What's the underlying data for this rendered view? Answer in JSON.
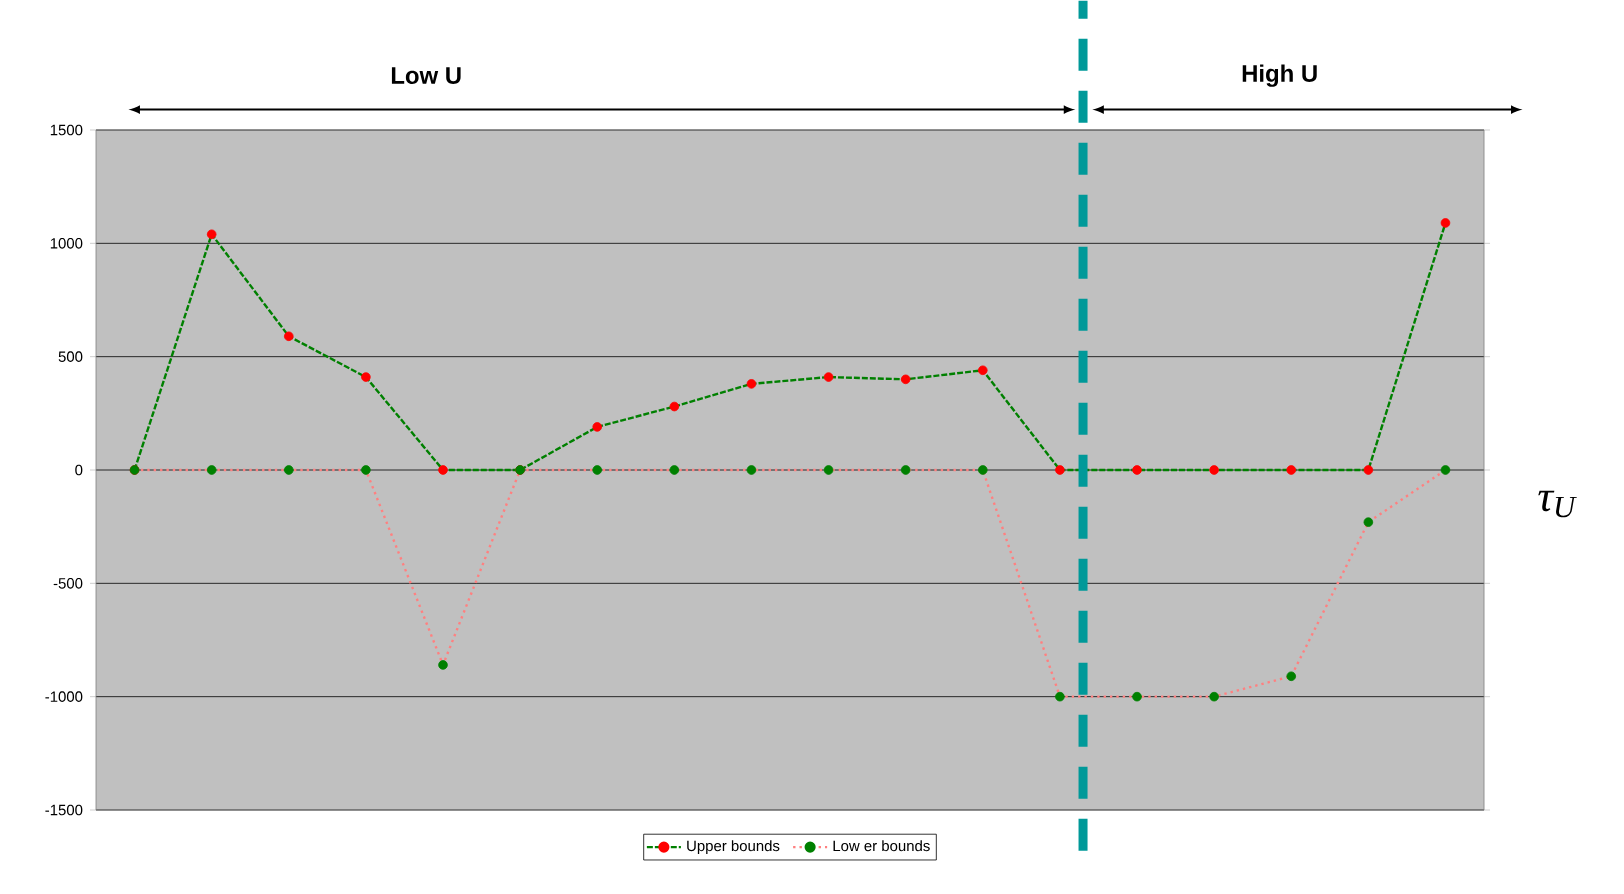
{
  "chart_data": {
    "type": "line",
    "categories": [
      null,
      null,
      null,
      null,
      null,
      null,
      null,
      null,
      null,
      null,
      null,
      null,
      null,
      null,
      null,
      null,
      null,
      null
    ],
    "series": [
      {
        "name": "Upper bounds",
        "color": "#008000",
        "line_style": "dashed",
        "values": [
          0,
          1040,
          590,
          410,
          0,
          0,
          190,
          280,
          380,
          410,
          400,
          440,
          0,
          0,
          0,
          0,
          0,
          1090
        ],
        "colors": [
          "#ff0000",
          "#ff0000",
          "#ff0000",
          "#ff0000",
          "#ff0000",
          "#ff0000",
          "#ff0000",
          "#ff0000",
          "#ff0000",
          "#ff0000",
          "#ff0000",
          "#ff0000",
          "#ff0000",
          "#ff0000",
          "#ff0000",
          "#ff0000",
          "#ff0000",
          "#ff0000"
        ]
      },
      {
        "name": "Low er bounds",
        "color": "#ff8080",
        "line_style": "dotted",
        "values": [
          0,
          0,
          0,
          0,
          -860,
          0,
          0,
          0,
          0,
          0,
          0,
          0,
          -1000,
          -1000,
          -1000,
          -910,
          -230,
          0
        ],
        "colors": [
          "#008000",
          "#008000",
          "#008000",
          "#008000",
          "#008000",
          "#008000",
          "#008000",
          "#008000",
          "#008000",
          "#008000",
          "#008000",
          "#008000",
          "#008000",
          "#008000",
          "#008000",
          "#008000",
          "#008000",
          "#008000"
        ]
      }
    ],
    "ylim": [
      -1500,
      1500
    ],
    "yticks": [
      -1500,
      -1000,
      -500,
      0,
      500,
      1000,
      1500
    ],
    "tick_labels": "y",
    "grid": "y",
    "legend": "bottom",
    "marker": "circle",
    "annotations": [
      "Low U",
      "High U",
      "τ$_{U}$"
    ]
  }
}
